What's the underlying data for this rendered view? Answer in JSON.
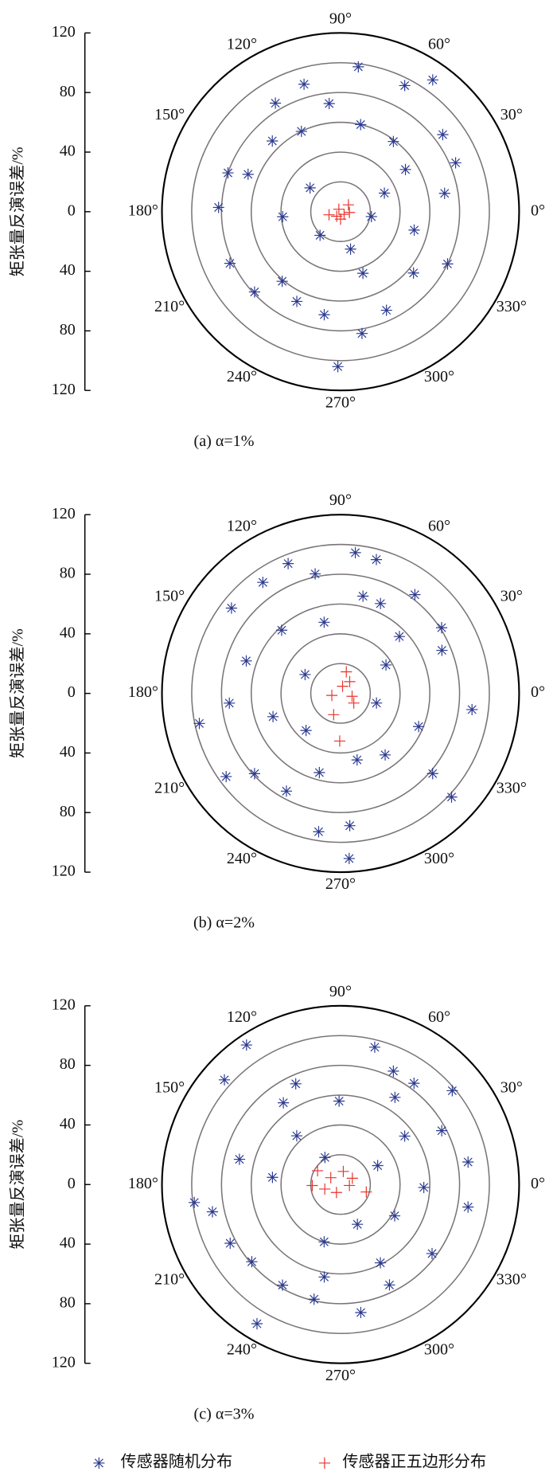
{
  "chart_data": [
    {
      "type": "polar",
      "subtitle": "(a) α=1%",
      "ylabel": "矩张量反演误差/%",
      "ylim": [
        -120,
        120
      ],
      "yticks": [
        120,
        80,
        40,
        0,
        {
          "value": -40,
          "label": "40"
        },
        {
          "value": -80,
          "label": "80"
        },
        {
          "value": -120,
          "label": "120"
        }
      ],
      "rlim": [
        0,
        120
      ],
      "rgrid": [
        20,
        40,
        60,
        80,
        100
      ],
      "thetaticks": [
        {
          "value": 0,
          "label": "0°"
        },
        {
          "value": 30,
          "label": "30°"
        },
        {
          "value": 60,
          "label": "60°"
        },
        {
          "value": 90,
          "label": "90°"
        },
        {
          "value": 120,
          "label": "120°"
        },
        {
          "value": 150,
          "label": "150°"
        },
        {
          "value": 180,
          "label": "180°"
        },
        {
          "value": 210,
          "label": "210°"
        },
        {
          "value": 240,
          "label": "240°"
        },
        {
          "value": 270,
          "label": "270°"
        },
        {
          "value": 300,
          "label": "300°"
        },
        {
          "value": 330,
          "label": "330°"
        }
      ],
      "series": [
        {
          "name": "传感器随机分布",
          "color": "#2b3a8f",
          "marker": "asterisk",
          "theta": [
            83,
            106,
            63,
            55,
            96,
            77,
            134,
            158,
            161,
            37,
            23,
            178,
            205,
            185,
            142,
            229,
            351,
            23,
            10,
            334,
            320,
            290,
            280,
            269,
            261,
            230,
            223,
            295,
            53,
            116,
            121,
            33,
            244,
            285,
            346
          ],
          "r": [
            98,
            89,
            95,
            108,
            73,
            60,
            66,
            67,
            80,
            86,
            84,
            82,
            82,
            39,
            26,
            21,
            21,
            32,
            71,
            80,
            64,
            44,
            83,
            104,
            70,
            61,
            79,
            73,
            59,
            60,
            85,
            52,
            67,
            26,
            51
          ]
        },
        {
          "name": "传感器正五边形分布",
          "color": "#e8342c",
          "marker": "plus",
          "theta": [
            195,
            124,
            41,
            323,
            230,
            270,
            355
          ],
          "r": [
            8,
            2,
            7,
            3,
            4,
            5,
            6
          ]
        }
      ]
    },
    {
      "type": "polar",
      "subtitle": "(b) α=2%",
      "ylabel": "矩张量反演误差/%",
      "ylim": [
        -120,
        120
      ],
      "yticks": [
        120,
        80,
        40,
        0,
        {
          "value": -40,
          "label": "40"
        },
        {
          "value": -80,
          "label": "80"
        },
        {
          "value": -120,
          "label": "120"
        }
      ],
      "rlim": [
        0,
        120
      ],
      "rgrid": [
        20,
        40,
        60,
        80,
        100
      ],
      "thetaticks": [
        {
          "value": 0,
          "label": "0°"
        },
        {
          "value": 30,
          "label": "30°"
        },
        {
          "value": 60,
          "label": "60°"
        },
        {
          "value": 90,
          "label": "90°"
        },
        {
          "value": 120,
          "label": "120°"
        },
        {
          "value": 150,
          "label": "150°"
        },
        {
          "value": 180,
          "label": "180°"
        },
        {
          "value": 210,
          "label": "210°"
        },
        {
          "value": 240,
          "label": "240°"
        },
        {
          "value": 270,
          "label": "270°"
        },
        {
          "value": 300,
          "label": "300°"
        },
        {
          "value": 330,
          "label": "330°"
        }
      ],
      "series": [
        {
          "name": "传感器随机分布",
          "color": "#2b3a8f",
          "marker": "asterisk",
          "theta": [
            84,
            112,
            75,
            125,
            142,
            102,
            66,
            33,
            23,
            53,
            133,
            161,
            185,
            192,
            216,
            223,
            241,
            261,
            273,
            274,
            227,
            199,
            284,
            306,
            337,
            353,
            317,
            319,
            345,
            32,
            103,
            77,
            152,
            44,
            255
          ],
          "r": [
            95,
            94,
            93,
            91,
            93,
            82,
            66,
            81,
            74,
            83,
            58,
            67,
            75,
            97,
            95,
            79,
            75,
            94,
            111,
            89,
            34,
            48,
            46,
            51,
            57,
            89,
            102,
            82,
            25,
            36,
            49,
            67,
            27,
            55,
            55
          ]
        },
        {
          "name": "传感器正五边形分布",
          "color": "#e8342c",
          "marker": "plus",
          "theta": [
            75,
            52,
            346,
            193,
            252,
            269,
            324,
            74
          ],
          "r": [
            15,
            10,
            8,
            6,
            15,
            32,
            11,
            5
          ]
        }
      ]
    },
    {
      "type": "polar",
      "subtitle": "(c) α=3%",
      "ylabel": "矩张量反演误差/%",
      "ylim": [
        -120,
        120
      ],
      "yticks": [
        120,
        80,
        40,
        0,
        {
          "value": -40,
          "label": "40"
        },
        {
          "value": -80,
          "label": "80"
        },
        {
          "value": -120,
          "label": "120"
        }
      ],
      "rlim": [
        0,
        120
      ],
      "rgrid": [
        20,
        40,
        60,
        80,
        100
      ],
      "thetaticks": [
        {
          "value": 0,
          "label": "0°"
        },
        {
          "value": 30,
          "label": "30°"
        },
        {
          "value": 60,
          "label": "60°"
        },
        {
          "value": 90,
          "label": "90°"
        },
        {
          "value": 120,
          "label": "120°"
        },
        {
          "value": 150,
          "label": "150°"
        },
        {
          "value": 180,
          "label": "180°"
        },
        {
          "value": 210,
          "label": "210°"
        },
        {
          "value": 240,
          "label": "240°"
        },
        {
          "value": 270,
          "label": "270°"
        },
        {
          "value": 300,
          "label": "300°"
        },
        {
          "value": 330,
          "label": "330°"
        }
      ],
      "series": [
        {
          "name": "传感器随机分布",
          "color": "#2b3a8f",
          "marker": "asterisk",
          "theta": [
            76,
            124,
            138,
            65,
            40,
            28,
            10,
            350,
            187,
            208,
            239,
            240,
            257,
            279,
            296,
            323,
            330,
            254,
            174,
            132,
            120,
            27,
            37,
            114,
            91,
            58,
            166,
            221,
            297,
            293,
            125,
            358,
            54,
            192,
            260
          ],
          "r": [
            95,
            113,
            105,
            84,
            98,
            77,
            87,
            87,
            99,
            84,
            109,
            78,
            79,
            87,
            75,
            77,
            42,
            40,
            46,
            44,
            21,
            28,
            54,
            74,
            56,
            69,
            70,
            79,
            59,
            29,
            67,
            56,
            84,
            88,
            63
          ]
        },
        {
          "name": "传感器正五边形分布",
          "color": "#e8342c",
          "marker": "plus",
          "theta": [
            149,
            182,
            196,
            243,
            78,
            28,
            344,
            354,
            145
          ],
          "r": [
            18,
            19,
            11,
            6,
            9,
            9,
            18,
            6,
            8
          ]
        }
      ]
    }
  ]
}
